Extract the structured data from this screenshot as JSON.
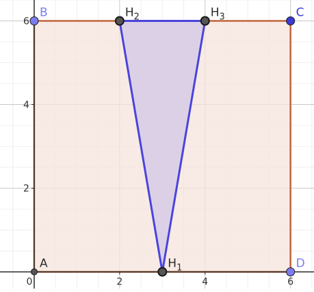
{
  "view": {
    "xrange": [
      -0.8,
      6.55
    ],
    "yrange": [
      -0.4,
      6.5
    ]
  },
  "axes": {
    "x_ticks": [
      {
        "value": 0,
        "label": "0"
      },
      {
        "value": 2,
        "label": "2"
      },
      {
        "value": 4,
        "label": "4"
      },
      {
        "value": 6,
        "label": "6"
      }
    ],
    "y_ticks": [
      {
        "value": 2,
        "label": "2"
      },
      {
        "value": 4,
        "label": "4"
      },
      {
        "value": 6,
        "label": "6"
      }
    ],
    "minor_step": 0.5,
    "major_step": 2
  },
  "square": {
    "vertices": [
      "A",
      "B",
      "C",
      "D"
    ],
    "fill": "#f5e4dc",
    "stroke": "#c0643c"
  },
  "triangle": {
    "vertices": [
      "H1",
      "H2",
      "H3"
    ],
    "fill": "#d7cbe8",
    "stroke": "#4a44dc"
  },
  "points": [
    {
      "id": "A",
      "label": "A",
      "x": 0,
      "y": 0,
      "color": "#555555",
      "style": "small"
    },
    {
      "id": "B",
      "label": "B",
      "x": 0,
      "y": 6,
      "color": "#7c7cf0",
      "style": "free"
    },
    {
      "id": "C",
      "label": "C",
      "x": 6,
      "y": 6,
      "color": "#3b3bd6",
      "style": "free"
    },
    {
      "id": "D",
      "label": "D",
      "x": 6,
      "y": 0,
      "color": "#7c7cf0",
      "style": "free"
    },
    {
      "id": "H1",
      "label": "H",
      "sub": "1",
      "x": 3,
      "y": 0,
      "color": "#555555",
      "style": "dependent"
    },
    {
      "id": "H2",
      "label": "H",
      "sub": "2",
      "x": 2,
      "y": 6,
      "color": "#555555",
      "style": "dependent"
    },
    {
      "id": "H3",
      "label": "H",
      "sub": "3",
      "x": 4,
      "y": 6,
      "color": "#555555",
      "style": "dependent"
    }
  ],
  "colors": {
    "grid_minor": "#efefef",
    "grid_major": "#c8c8c8",
    "axis": "#2b2b2b",
    "label": "#2b2b2b"
  }
}
